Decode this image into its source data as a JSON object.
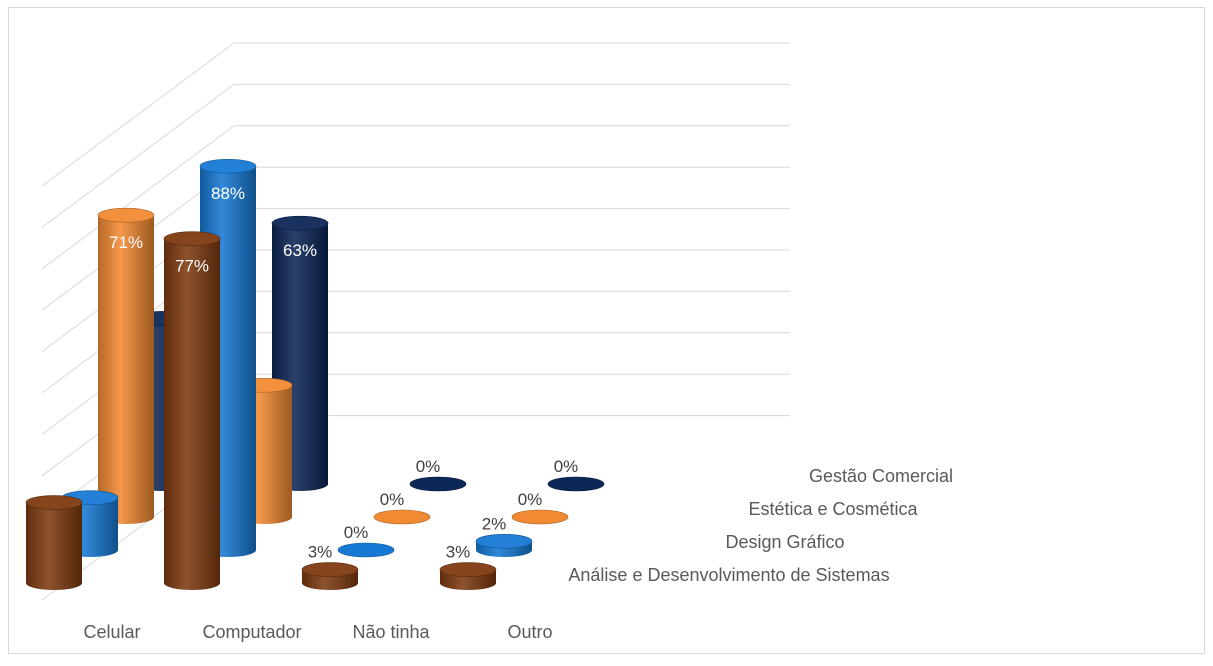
{
  "chart_data": {
    "type": "bar",
    "subtype": "3d-cylinder",
    "title": "",
    "xlabel": "",
    "ylabel": "",
    "ylim": [
      0,
      100
    ],
    "grid": true,
    "categories": [
      "Celular",
      "Computador",
      "Não tinha",
      "Outro"
    ],
    "series": [
      {
        "name": "Gestão Comercial",
        "values": [
          40,
          63,
          0,
          0
        ],
        "labels": [
          "",
          "63%",
          "0%",
          "0%"
        ],
        "color": "#0d2757"
      },
      {
        "name": "Estética e Cosmética",
        "values": [
          71,
          31,
          0,
          0
        ],
        "labels": [
          "71%",
          "",
          "0%",
          "0%"
        ],
        "color": "#f28a33"
      },
      {
        "name": "Design Gráfico",
        "values": [
          12,
          88,
          0,
          2
        ],
        "labels": [
          "",
          "88%",
          "0%",
          "2%"
        ],
        "color": "#1779d4"
      },
      {
        "name": "Análise e Desenvolvimento de Sistemas",
        "values": [
          18,
          77,
          3,
          3
        ],
        "labels": [
          "",
          "77%",
          "3%",
          "3%"
        ],
        "color": "#7f3a10"
      }
    ]
  }
}
